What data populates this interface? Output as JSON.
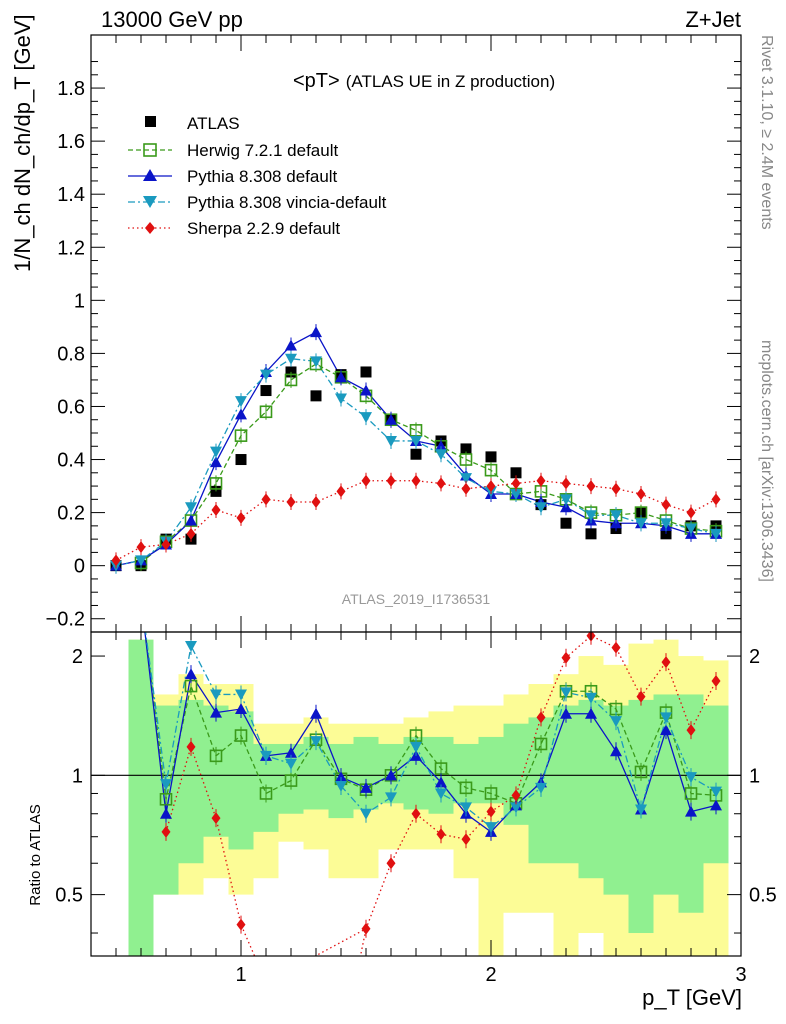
{
  "header": {
    "left": "13000 GeV pp",
    "right": "Z+Jet",
    "plot_title": "<pT>",
    "plot_subtitle": "(ATLAS UE in Z production)",
    "analysis_id": "ATLAS_2019_I1736531",
    "side_top": "Rivet 3.1.10, ≥ 2.4M events",
    "side_bottom": "mcplots.cern.ch [arXiv:1306.3436]"
  },
  "axes": {
    "ylabel_main": "1/N_ch dN_ch/dp_T [GeV]",
    "ylabel_ratio": "Ratio to ATLAS",
    "xlabel": "p_T [GeV]",
    "xlim": [
      0.4,
      3.0
    ],
    "ylim_main": [
      -0.25,
      2.0
    ],
    "ylim_ratio": [
      0.35,
      2.3
    ],
    "main_ticks": [
      "−0.2",
      "0",
      "0.2",
      "0.4",
      "0.6",
      "0.8",
      "1",
      "1.2",
      "1.4",
      "1.6",
      "1.8"
    ],
    "ratio_ticks": [
      "0.5",
      "1",
      "2"
    ],
    "x_ticks": [
      "1",
      "2",
      "3"
    ]
  },
  "colors": {
    "ATLAS": "#000000",
    "Herwig": "#3a9a1a",
    "Pythia": "#0a14c8",
    "Vincia": "#1a9abf",
    "Sherpa": "#e01010",
    "band_green": "#90f090",
    "band_yellow": "#fcfc96"
  },
  "chart_data": {
    "type": "line",
    "title": "<pT> (ATLAS UE in Z production)",
    "xlabel": "p_T [GeV]",
    "ylabel": "1/N_ch dN_ch/dp_T [GeV]",
    "legend_position": "top-left",
    "series": [
      {
        "key": "atlas",
        "name": "ATLAS",
        "style": "data",
        "x": [
          0.5,
          0.6,
          0.7,
          0.8,
          0.9,
          1.0,
          1.1,
          1.2,
          1.3,
          1.4,
          1.5,
          1.6,
          1.7,
          1.8,
          1.9,
          2.0,
          2.1,
          2.2,
          2.3,
          2.4,
          2.5,
          2.6,
          2.7,
          2.8,
          2.9
        ],
        "values": [
          0.0,
          0.0,
          0.1,
          0.1,
          0.28,
          0.4,
          0.66,
          0.73,
          0.64,
          0.72,
          0.73,
          0.55,
          0.42,
          0.47,
          0.44,
          0.41,
          0.35,
          0.23,
          0.16,
          0.12,
          0.14,
          0.2,
          0.12,
          0.15,
          0.15
        ]
      },
      {
        "key": "herwig",
        "name": "Herwig 7.2.1 default",
        "style": "dashed",
        "x": [
          0.6,
          0.7,
          0.8,
          0.9,
          1.0,
          1.1,
          1.2,
          1.3,
          1.4,
          1.5,
          1.6,
          1.7,
          1.8,
          1.9,
          2.0,
          2.1,
          2.2,
          2.3,
          2.4,
          2.5,
          2.6,
          2.7,
          2.8,
          2.9
        ],
        "values": [
          0.01,
          0.09,
          0.17,
          0.31,
          0.49,
          0.58,
          0.7,
          0.76,
          0.71,
          0.64,
          0.55,
          0.51,
          0.45,
          0.4,
          0.36,
          0.27,
          0.28,
          0.25,
          0.2,
          0.19,
          0.2,
          0.17,
          0.14,
          0.13
        ]
      },
      {
        "key": "pythia",
        "name": "Pythia 8.308 default",
        "style": "solid",
        "x": [
          0.5,
          0.6,
          0.7,
          0.8,
          0.9,
          1.0,
          1.1,
          1.2,
          1.3,
          1.4,
          1.5,
          1.6,
          1.7,
          1.8,
          1.9,
          2.0,
          2.1,
          2.2,
          2.3,
          2.4,
          2.5,
          2.6,
          2.7,
          2.8,
          2.9
        ],
        "values": [
          0.0,
          0.02,
          0.08,
          0.17,
          0.39,
          0.57,
          0.73,
          0.83,
          0.88,
          0.71,
          0.66,
          0.55,
          0.47,
          0.45,
          0.34,
          0.27,
          0.27,
          0.24,
          0.22,
          0.17,
          0.16,
          0.16,
          0.15,
          0.12,
          0.12
        ]
      },
      {
        "key": "vincia",
        "name": "Pythia 8.308 vincia-default",
        "style": "dashdot",
        "x": [
          0.5,
          0.6,
          0.7,
          0.8,
          0.9,
          1.0,
          1.1,
          1.2,
          1.3,
          1.4,
          1.5,
          1.6,
          1.7,
          1.8,
          1.9,
          2.0,
          2.1,
          2.2,
          2.3,
          2.4,
          2.5,
          2.6,
          2.7,
          2.8,
          2.9
        ],
        "values": [
          0.0,
          0.02,
          0.09,
          0.22,
          0.43,
          0.62,
          0.72,
          0.78,
          0.77,
          0.63,
          0.56,
          0.47,
          0.47,
          0.42,
          0.33,
          0.28,
          0.27,
          0.22,
          0.25,
          0.19,
          0.19,
          0.16,
          0.16,
          0.14,
          0.12
        ]
      },
      {
        "key": "sherpa",
        "name": "Sherpa 2.2.9 default",
        "style": "dotted",
        "x": [
          0.5,
          0.6,
          0.7,
          0.8,
          0.9,
          1.0,
          1.1,
          1.2,
          1.3,
          1.4,
          1.5,
          1.6,
          1.7,
          1.8,
          1.9,
          2.0,
          2.1,
          2.2,
          2.3,
          2.4,
          2.5,
          2.6,
          2.7,
          2.8,
          2.9
        ],
        "values": [
          0.02,
          0.07,
          0.08,
          0.12,
          0.21,
          0.18,
          0.25,
          0.24,
          0.24,
          0.28,
          0.32,
          0.32,
          0.32,
          0.31,
          0.29,
          0.3,
          0.31,
          0.32,
          0.31,
          0.3,
          0.29,
          0.27,
          0.23,
          0.2,
          0.25
        ]
      }
    ],
    "ratio": {
      "ylabel": "Ratio to ATLAS",
      "reference": 1,
      "bins": [
        0.45,
        0.55,
        0.65,
        0.75,
        0.85,
        0.95,
        1.05,
        1.15,
        1.25,
        1.35,
        1.45,
        1.55,
        1.65,
        1.75,
        1.85,
        1.95,
        2.05,
        2.15,
        2.25,
        2.35,
        2.45,
        2.55,
        2.65,
        2.75,
        2.85,
        2.95
      ],
      "band_green_low": [
        null,
        0.35,
        0.5,
        0.6,
        0.7,
        0.65,
        0.72,
        0.8,
        0.82,
        0.78,
        0.82,
        0.85,
        0.82,
        0.8,
        0.85,
        0.85,
        0.75,
        0.6,
        0.6,
        0.55,
        0.5,
        0.4,
        0.5,
        0.45,
        0.6
      ],
      "band_green_high": [
        null,
        2.2,
        1.5,
        1.55,
        1.5,
        1.45,
        1.2,
        1.2,
        1.25,
        1.2,
        1.25,
        1.2,
        1.25,
        1.25,
        1.2,
        1.25,
        1.35,
        1.4,
        1.5,
        1.55,
        1.5,
        1.55,
        1.6,
        1.6,
        1.5
      ],
      "band_yellow_low": [
        null,
        0.35,
        0.5,
        0.5,
        0.55,
        0.5,
        0.55,
        0.68,
        0.65,
        0.55,
        0.55,
        0.65,
        0.65,
        0.65,
        0.55,
        0.35,
        0.45,
        0.45,
        0.35,
        0.4,
        0.35,
        0.35,
        0.35,
        0.35,
        0.35
      ],
      "band_yellow_high": [
        null,
        2.2,
        1.6,
        1.8,
        1.7,
        1.7,
        1.35,
        1.35,
        1.4,
        1.35,
        1.35,
        1.35,
        1.4,
        1.45,
        1.5,
        1.5,
        1.6,
        1.7,
        1.8,
        2.0,
        1.9,
        2.15,
        2.2,
        2.0,
        1.95
      ],
      "series": [
        {
          "key": "herwig",
          "x": [
            0.6,
            0.7,
            0.8,
            0.9,
            1.0,
            1.1,
            1.2,
            1.3,
            1.4,
            1.5,
            1.6,
            1.7,
            1.8,
            1.9,
            2.0,
            2.1,
            2.2,
            2.3,
            2.4,
            2.5,
            2.6,
            2.7,
            2.8,
            2.9
          ],
          "values": [
            2.8,
            0.87,
            1.68,
            1.12,
            1.26,
            0.9,
            0.97,
            1.23,
            0.98,
            0.92,
            1.0,
            1.26,
            1.04,
            0.93,
            0.9,
            0.85,
            1.2,
            1.63,
            1.63,
            1.47,
            1.02,
            1.44,
            0.9,
            0.89
          ]
        },
        {
          "key": "pythia",
          "x": [
            0.6,
            0.7,
            0.8,
            0.9,
            1.0,
            1.1,
            1.2,
            1.3,
            1.4,
            1.5,
            1.6,
            1.7,
            1.8,
            1.9,
            2.0,
            2.1,
            2.2,
            2.3,
            2.4,
            2.5,
            2.6,
            2.7,
            2.8,
            2.9
          ],
          "values": [
            2.8,
            0.8,
            1.8,
            1.44,
            1.47,
            1.12,
            1.14,
            1.43,
            0.99,
            0.93,
            1.0,
            1.12,
            0.96,
            0.8,
            0.72,
            0.84,
            0.96,
            1.43,
            1.43,
            1.15,
            0.82,
            1.3,
            0.81,
            0.84
          ]
        },
        {
          "key": "vincia",
          "x": [
            0.6,
            0.7,
            0.8,
            0.9,
            1.0,
            1.1,
            1.2,
            1.3,
            1.4,
            1.5,
            1.6,
            1.7,
            1.8,
            1.9,
            2.0,
            2.1,
            2.2,
            2.3,
            2.4,
            2.5,
            2.6,
            2.7,
            2.8,
            2.9
          ],
          "values": [
            2.8,
            0.95,
            2.12,
            1.6,
            1.6,
            1.12,
            1.07,
            1.22,
            0.94,
            0.8,
            0.88,
            1.18,
            0.9,
            0.83,
            0.74,
            0.83,
            0.93,
            1.62,
            1.57,
            1.37,
            0.82,
            1.4,
            0.99,
            0.91
          ]
        },
        {
          "key": "sherpa",
          "x": [
            0.7,
            0.8,
            0.9,
            1.0,
            1.1,
            1.5,
            1.6,
            1.7,
            1.8,
            1.9,
            2.0,
            2.1,
            2.2,
            2.3,
            2.4,
            2.5,
            2.6,
            2.7,
            2.8,
            2.9
          ],
          "values": [
            0.72,
            1.18,
            0.78,
            0.42,
            0.3,
            0.41,
            0.6,
            0.8,
            0.71,
            0.69,
            0.81,
            0.89,
            1.4,
            1.98,
            2.25,
            2.1,
            1.58,
            1.93,
            1.3,
            1.73
          ]
        }
      ]
    }
  }
}
